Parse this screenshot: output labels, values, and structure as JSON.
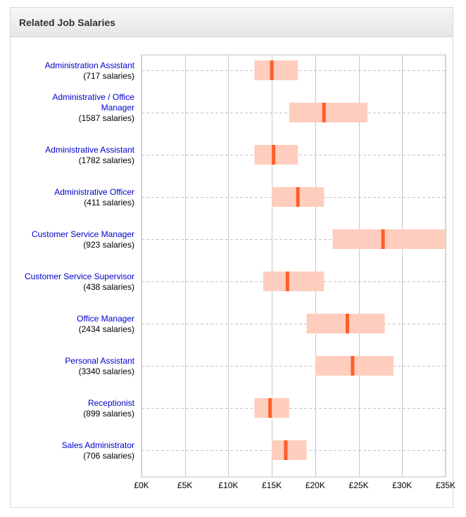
{
  "panel": {
    "title": "Related Job Salaries"
  },
  "colors": {
    "range_fill": "#ffcdbd",
    "median_marker": "#ff5e2a",
    "link": "#0000cc",
    "gridline": "#c8c8c8",
    "row_guide": "#c4c4c4",
    "axis_frame": "#bfbfbf"
  },
  "chart_data": {
    "type": "range-bar",
    "orientation": "horizontal",
    "currency_symbol": "£",
    "x_axis": {
      "min": 0,
      "max": 35000,
      "ticks": [
        0,
        5000,
        10000,
        15000,
        20000,
        25000,
        30000,
        35000
      ],
      "tick_labels": [
        "£0K",
        "£5K",
        "£10K",
        "£15K",
        "£20K",
        "£25K",
        "£30K",
        "£35K"
      ]
    },
    "grid": true,
    "rows": [
      {
        "title_lines": [
          "Administration Assistant"
        ],
        "count_label": "(717 salaries)",
        "low": 13000,
        "high": 18000,
        "median": 15000
      },
      {
        "title_lines": [
          "Administrative / Office",
          "Manager"
        ],
        "count_label": "(1587 salaries)",
        "low": 17000,
        "high": 26000,
        "median": 21000
      },
      {
        "title_lines": [
          "Administrative Assistant"
        ],
        "count_label": "(1782 salaries)",
        "low": 13000,
        "high": 18000,
        "median": 15200
      },
      {
        "title_lines": [
          "Administrative Officer"
        ],
        "count_label": "(411 salaries)",
        "low": 15000,
        "high": 21000,
        "median": 18000
      },
      {
        "title_lines": [
          "Customer Service Manager"
        ],
        "count_label": "(923 salaries)",
        "low": 22000,
        "high": 35000,
        "median": 27800
      },
      {
        "title_lines": [
          "Customer Service Supervisor"
        ],
        "count_label": "(438 salaries)",
        "low": 14000,
        "high": 21000,
        "median": 16800
      },
      {
        "title_lines": [
          "Office Manager"
        ],
        "count_label": "(2434 salaries)",
        "low": 19000,
        "high": 28000,
        "median": 23700
      },
      {
        "title_lines": [
          "Personal Assistant"
        ],
        "count_label": "(3340 salaries)",
        "low": 20000,
        "high": 29000,
        "median": 24300
      },
      {
        "title_lines": [
          "Receptionist"
        ],
        "count_label": "(899 salaries)",
        "low": 13000,
        "high": 17000,
        "median": 14800
      },
      {
        "title_lines": [
          "Sales Administrator"
        ],
        "count_label": "(706 salaries)",
        "low": 15000,
        "high": 19000,
        "median": 16600
      }
    ]
  }
}
